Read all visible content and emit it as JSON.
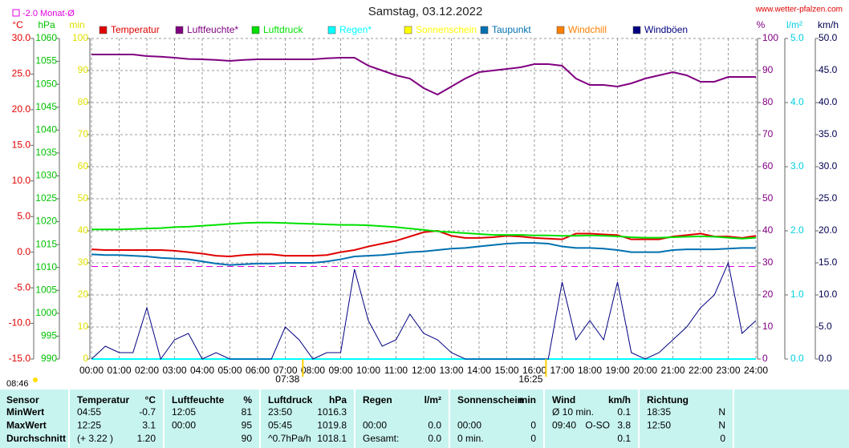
{
  "chart_data": {
    "type": "line",
    "title": "Samstag, 03.12.2022",
    "source": "www.wetter-pfalzen.com",
    "monthly_avg": {
      "value": -2.0,
      "label": "-2.0 Monat-Ø",
      "color": "#e000e0"
    },
    "day_length": "08:46",
    "sun_events": [
      {
        "x": 7.633,
        "label": "07:38"
      },
      {
        "x": 16.417,
        "label": "16:25"
      }
    ],
    "xlim": [
      0,
      24
    ],
    "xticks": [
      {
        "value": 0,
        "label": "00:00"
      },
      {
        "value": 1,
        "label": "01:00"
      },
      {
        "value": 2,
        "label": "02:00"
      },
      {
        "value": 3,
        "label": "03:00"
      },
      {
        "value": 4,
        "label": "04:00"
      },
      {
        "value": 5,
        "label": "05:00"
      },
      {
        "value": 6,
        "label": "06:00"
      },
      {
        "value": 7,
        "label": "07:00"
      },
      {
        "value": 8,
        "label": "08:00"
      },
      {
        "value": 9,
        "label": "09:00"
      },
      {
        "value": 10,
        "label": "10:00"
      },
      {
        "value": 11,
        "label": "11:00"
      },
      {
        "value": 12,
        "label": "12:00"
      },
      {
        "value": 13,
        "label": "13:00"
      },
      {
        "value": 14,
        "label": "14:00"
      },
      {
        "value": 15,
        "label": "15:00"
      },
      {
        "value": 16,
        "label": "16:00"
      },
      {
        "value": 17,
        "label": "17:00"
      },
      {
        "value": 18,
        "label": "18:00"
      },
      {
        "value": 19,
        "label": "19:00"
      },
      {
        "value": 20,
        "label": "20:00"
      },
      {
        "value": 21,
        "label": "21:00"
      },
      {
        "value": 22,
        "label": "22:00"
      },
      {
        "value": 23,
        "label": "23:00"
      },
      {
        "value": 24,
        "label": "24:00"
      }
    ],
    "grid": true,
    "axes": [
      {
        "unit": "°C",
        "color": "#e00000",
        "side": "left",
        "lim": [
          -15,
          30
        ],
        "ticks": [
          {
            "value": -15,
            "label": "-15.0"
          },
          {
            "value": -10,
            "label": "-10.0"
          },
          {
            "value": -5,
            "label": "-5.0"
          },
          {
            "value": 0,
            "label": "0.0"
          },
          {
            "value": 5,
            "label": "5.0"
          },
          {
            "value": 10,
            "label": "10.0"
          },
          {
            "value": 15,
            "label": "15.0"
          },
          {
            "value": 20,
            "label": "20.0"
          },
          {
            "value": 25,
            "label": "25.0"
          },
          {
            "value": 30,
            "label": "30.0"
          }
        ]
      },
      {
        "unit": "hPa",
        "color": "#00c000",
        "side": "left",
        "lim": [
          990,
          1060
        ],
        "ticks": [
          990,
          995,
          1000,
          1005,
          1010,
          1015,
          1020,
          1025,
          1030,
          1035,
          1040,
          1045,
          1050,
          1055,
          1060
        ]
      },
      {
        "unit": "min",
        "color": "#e0e000",
        "side": "left",
        "lim": [
          0,
          100
        ],
        "ticks": [
          0,
          10,
          20,
          30,
          40,
          50,
          60,
          70,
          80,
          90,
          100
        ]
      },
      {
        "unit": "%",
        "color": "#800080",
        "side": "right",
        "lim": [
          0,
          100
        ],
        "ticks": [
          0,
          10,
          20,
          30,
          40,
          50,
          60,
          70,
          80,
          90,
          100
        ]
      },
      {
        "unit": "l/m²",
        "color": "#00d0e0",
        "side": "right",
        "lim": [
          0,
          5
        ],
        "ticks": [
          {
            "value": 0,
            "label": "0.0"
          },
          {
            "value": 1,
            "label": "1.0"
          },
          {
            "value": 2,
            "label": "2.0"
          },
          {
            "value": 3,
            "label": "3.0"
          },
          {
            "value": 4,
            "label": "4.0"
          },
          {
            "value": 5,
            "label": "5.0"
          }
        ]
      },
      {
        "unit": "km/h",
        "color": "#000050",
        "side": "right",
        "lim": [
          0,
          50
        ],
        "ticks": [
          {
            "value": 0,
            "label": "0.0"
          },
          {
            "value": 5,
            "label": "5.0"
          },
          {
            "value": 10,
            "label": "10.0"
          },
          {
            "value": 15,
            "label": "15.0"
          },
          {
            "value": 20,
            "label": "20.0"
          },
          {
            "value": 25,
            "label": "25.0"
          },
          {
            "value": 30,
            "label": "30.0"
          },
          {
            "value": 35,
            "label": "35.0"
          },
          {
            "value": 40,
            "label": "40.0"
          },
          {
            "value": 45,
            "label": "45.0"
          },
          {
            "value": 50,
            "label": "50.0"
          }
        ]
      }
    ],
    "x": [
      0,
      0.5,
      1,
      1.5,
      2,
      2.5,
      3,
      3.5,
      4,
      4.5,
      5,
      5.5,
      6,
      6.5,
      7,
      7.5,
      8,
      8.5,
      9,
      9.5,
      10,
      10.5,
      11,
      11.5,
      12,
      12.5,
      13,
      13.5,
      14,
      14.5,
      15,
      15.5,
      16,
      16.5,
      17,
      17.5,
      18,
      18.5,
      19,
      19.5,
      20,
      20.5,
      21,
      21.5,
      22,
      22.5,
      23,
      23.5,
      24
    ],
    "series": [
      {
        "name": "Temperatur",
        "color": "#e00000",
        "axis": 0,
        "values": [
          0.4,
          0.3,
          0.3,
          0.3,
          0.3,
          0.3,
          0.2,
          0.0,
          -0.2,
          -0.5,
          -0.6,
          -0.4,
          -0.3,
          -0.3,
          -0.5,
          -0.5,
          -0.5,
          -0.4,
          0.0,
          0.3,
          0.8,
          1.2,
          1.6,
          2.2,
          2.8,
          3.0,
          2.3,
          2.0,
          2.0,
          2.1,
          2.3,
          2.2,
          2.0,
          1.9,
          1.8,
          2.6,
          2.6,
          2.5,
          2.4,
          1.8,
          1.8,
          1.8,
          2.2,
          2.4,
          2.6,
          2.2,
          2.2,
          2.0,
          2.3
        ]
      },
      {
        "name": "Luftfeuchte*",
        "color": "#800080",
        "axis": 3,
        "values": [
          95,
          95,
          95,
          95,
          94.5,
          94.3,
          94,
          93.6,
          93.5,
          93.3,
          93,
          93.3,
          93.5,
          93.5,
          93.5,
          93.5,
          93.5,
          93.8,
          94,
          94,
          91.5,
          90,
          88.5,
          87.5,
          84.5,
          82.5,
          85,
          87.5,
          89.5,
          90,
          90.5,
          91,
          92,
          92,
          91.5,
          87.5,
          85.5,
          85.5,
          85,
          86,
          87.5,
          88.5,
          89.5,
          88.5,
          86.5,
          86.5,
          88,
          88,
          88
        ]
      },
      {
        "name": "Luftdruck",
        "color": "#00e000",
        "axis": 1,
        "values": [
          1018.3,
          1018.3,
          1018.3,
          1018.4,
          1018.5,
          1018.6,
          1018.8,
          1018.9,
          1019.1,
          1019.3,
          1019.5,
          1019.7,
          1019.8,
          1019.8,
          1019.7,
          1019.6,
          1019.5,
          1019.4,
          1019.3,
          1019.3,
          1019.2,
          1019.0,
          1018.8,
          1018.5,
          1018.2,
          1017.9,
          1017.7,
          1017.5,
          1017.3,
          1017.1,
          1017.1,
          1017.1,
          1017.0,
          1017.0,
          1016.9,
          1016.9,
          1017.0,
          1016.9,
          1016.8,
          1016.6,
          1016.5,
          1016.5,
          1016.6,
          1016.7,
          1016.8,
          1016.7,
          1016.5,
          1016.3,
          1016.5
        ]
      },
      {
        "name": "Regen*",
        "color": "#00ffff",
        "axis": 4,
        "values": [
          0,
          0,
          0,
          0,
          0,
          0,
          0,
          0,
          0,
          0,
          0,
          0,
          0,
          0,
          0,
          0,
          0,
          0,
          0,
          0,
          0,
          0,
          0,
          0,
          0,
          0,
          0,
          0,
          0,
          0,
          0,
          0,
          0,
          0,
          0,
          0,
          0,
          0,
          0,
          0,
          0,
          0,
          0,
          0,
          0,
          0,
          0,
          0,
          0
        ]
      },
      {
        "name": "Sonnenschein",
        "color": "#ffff00",
        "axis": 2
      },
      {
        "name": "Taupunkt",
        "color": "#0070b0",
        "axis": 0,
        "values": [
          -0.3,
          -0.4,
          -0.4,
          -0.5,
          -0.6,
          -0.8,
          -0.9,
          -1.0,
          -1.3,
          -1.6,
          -1.8,
          -1.7,
          -1.6,
          -1.6,
          -1.5,
          -1.5,
          -1.5,
          -1.3,
          -1.0,
          -0.6,
          -0.5,
          -0.4,
          -0.2,
          0.0,
          0.1,
          0.3,
          0.5,
          0.6,
          0.8,
          1.0,
          1.2,
          1.3,
          1.3,
          1.2,
          0.8,
          0.6,
          0.6,
          0.5,
          0.3,
          0.0,
          0.0,
          0.0,
          0.3,
          0.4,
          0.4,
          0.4,
          0.5,
          0.6,
          0.6
        ]
      },
      {
        "name": "Windchill",
        "color": "#ff8000",
        "axis": 0
      },
      {
        "name": "Windböen",
        "color": "#000080",
        "axis": 5,
        "values": [
          0,
          2,
          1,
          1,
          8,
          0,
          3,
          4,
          0,
          1,
          0,
          0,
          0,
          0,
          5,
          3,
          0,
          1,
          1,
          14,
          6,
          2,
          3,
          7,
          4,
          3,
          1,
          0,
          0,
          0,
          0,
          0,
          0,
          0,
          12,
          3,
          6,
          3,
          12,
          1,
          0,
          1,
          3,
          5,
          8,
          10,
          15,
          4,
          6
        ]
      }
    ]
  },
  "table": {
    "columns": [
      {
        "title": "Sensor"
      },
      {
        "title": "Temperatur",
        "unit": "°C"
      },
      {
        "title": "Luftfeuchte",
        "unit": "%"
      },
      {
        "title": "Luftdruck",
        "unit": "hPa"
      },
      {
        "title": "Regen",
        "unit": "l/m²"
      },
      {
        "title": "Sonnenschein",
        "unit": "min"
      },
      {
        "title": "Wind",
        "unit": "km/h"
      },
      {
        "title": "Richtung"
      }
    ],
    "rows": [
      {
        "label": "MinWert",
        "cells": [
          {
            "left": "04:55",
            "right": "-0.7"
          },
          {
            "left": "12:05",
            "right": "81"
          },
          {
            "left": "23:50",
            "right": "1016.3"
          },
          {},
          {},
          {
            "left": "Ø 10 min.",
            "right": "0.1"
          },
          {
            "left": "18:35",
            "right": "N"
          }
        ]
      },
      {
        "label": "MaxWert",
        "cells": [
          {
            "left": "12:25",
            "right": "3.1"
          },
          {
            "left": "00:00",
            "right": "95"
          },
          {
            "left": "05:45",
            "right": "1019.8"
          },
          {
            "left": "00:00",
            "right": "0.0"
          },
          {
            "left": "00:00",
            "right": "0"
          },
          {
            "left": "09:40",
            "mid": "O-SO",
            "right": "3.8"
          },
          {
            "left": "12:50",
            "right": "N"
          }
        ]
      },
      {
        "label": "Durchschnitt",
        "cells": [
          {
            "left": "(+ 3.22 )",
            "right": "1.20"
          },
          {
            "right": "90"
          },
          {
            "left": "^0.7hPa/h",
            "right": "1018.1"
          },
          {
            "left": "Gesamt:",
            "right": "0.0"
          },
          {
            "left": "0 min.",
            "right": "0"
          },
          {
            "right": "0.1"
          },
          {
            "right": "0"
          }
        ]
      }
    ]
  }
}
